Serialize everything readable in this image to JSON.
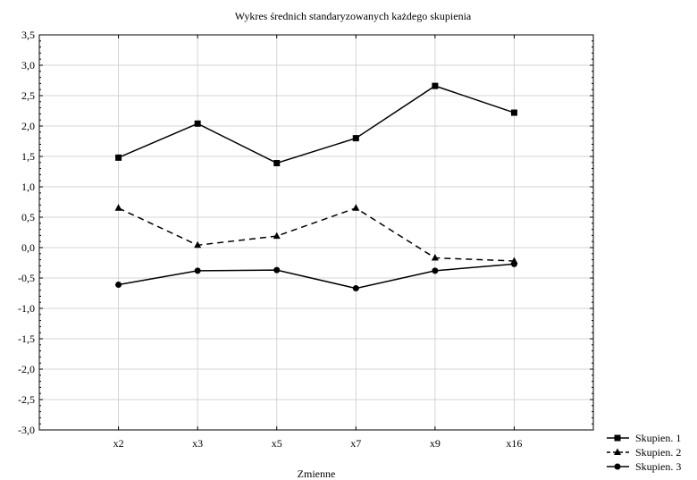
{
  "chart_data": {
    "type": "line",
    "title": "Wykres średnich standaryzowanych każdego skupienia",
    "xlabel": "Zmienne",
    "ylabel": "",
    "categories": [
      "x2",
      "x3",
      "x5",
      "x7",
      "x9",
      "x16"
    ],
    "ylim": [
      -3.0,
      3.5
    ],
    "yticks": [
      "3,5",
      "3,0",
      "2,5",
      "2,0",
      "1,5",
      "1,0",
      "0,5",
      "0,0",
      "-0,5",
      "-1,0",
      "-1,5",
      "-2,0",
      "-2,5",
      "-3,0"
    ],
    "grid": true,
    "legend_position": "bottom-right outside",
    "series": [
      {
        "name": "Skupien. 1",
        "marker": "square",
        "dash": "solid",
        "color": "#000000",
        "values": [
          1.48,
          2.04,
          1.39,
          1.8,
          2.66,
          2.22
        ]
      },
      {
        "name": "Skupien. 2",
        "marker": "triangle",
        "dash": "dashed",
        "color": "#000000",
        "values": [
          0.65,
          0.04,
          0.19,
          0.65,
          -0.17,
          -0.22
        ]
      },
      {
        "name": "Skupien. 3",
        "marker": "circle",
        "dash": "solid",
        "color": "#000000",
        "values": [
          -0.61,
          -0.38,
          -0.37,
          -0.67,
          -0.38,
          -0.27
        ]
      }
    ]
  }
}
